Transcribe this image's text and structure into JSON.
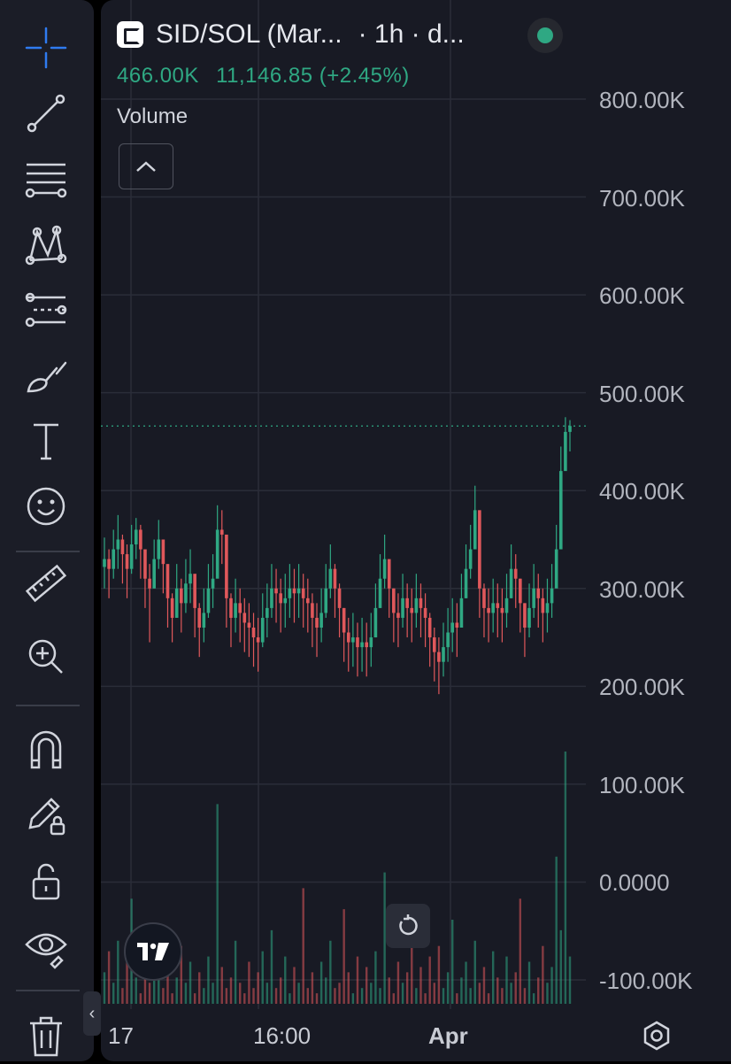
{
  "toolbar": {
    "tools": [
      {
        "name": "crosshair-tool",
        "icon": "crosshair-icon"
      },
      {
        "name": "trend-line-tool",
        "icon": "trend-line-icon"
      },
      {
        "name": "fib-retracement-tool",
        "icon": "fib-retracement-icon"
      },
      {
        "name": "xabcd-pattern-tool",
        "icon": "pattern-icon"
      },
      {
        "name": "prediction-tool",
        "icon": "forecast-icon"
      },
      {
        "name": "brush-tool",
        "icon": "brush-icon"
      },
      {
        "name": "text-tool",
        "icon": "text-icon"
      },
      {
        "name": "emoji-tool",
        "icon": "smiley-icon"
      },
      {
        "name": "ruler-tool",
        "icon": "ruler-icon"
      },
      {
        "name": "zoom-in-tool",
        "icon": "zoom-in-icon"
      },
      {
        "name": "magnet-tool",
        "icon": "magnet-icon"
      },
      {
        "name": "lock-drawings-tool",
        "icon": "pencil-lock-icon"
      },
      {
        "name": "unlock-tool",
        "icon": "unlock-icon"
      },
      {
        "name": "hide-drawings-tool",
        "icon": "eye-icon"
      },
      {
        "name": "delete-tool",
        "icon": "trash-icon"
      }
    ],
    "collapse_glyph": "‹"
  },
  "legend": {
    "symbol": "SID/SOL (Mar...",
    "interval": "· 1h · d...",
    "open_value": "466.00K",
    "volume_value": "11,146.85 (+2.45%)",
    "indicator_label": "Volume"
  },
  "price_axis": {
    "labels": [
      "800.00K",
      "700.00K",
      "600.00K",
      "500.00K",
      "400.00K",
      "300.00K",
      "200.00K",
      "100.00K",
      "0.0000",
      "-100.00K"
    ]
  },
  "time_axis": {
    "labels": [
      "17",
      "16:00",
      "Apr"
    ]
  },
  "colors": {
    "up": "#2fa883",
    "down": "#e0585b",
    "background": "#181a24",
    "grid": "#2a2d38",
    "price_line": "#2fa883"
  },
  "chart_data": {
    "type": "candlestick",
    "series": [
      {
        "name": "SID/SOL",
        "close": [
          330000,
          320000,
          340000,
          350000,
          335000,
          320000,
          345000,
          360000,
          340000,
          310000,
          300000,
          330000,
          350000,
          325000,
          290000,
          270000,
          300000,
          285000,
          305000,
          315000,
          280000,
          260000,
          275000,
          300000,
          310000,
          360000,
          355000,
          290000,
          270000,
          285000,
          275000,
          265000,
          260000,
          250000,
          245000,
          270000,
          280000,
          300000,
          295000,
          285000,
          290000,
          300000,
          295000,
          300000,
          290000,
          285000,
          270000,
          260000,
          275000,
          300000,
          320000,
          300000,
          280000,
          255000,
          245000,
          250000,
          240000,
          245000,
          240000,
          250000,
          280000,
          310000,
          330000,
          300000,
          275000,
          270000,
          290000,
          280000,
          275000,
          290000,
          280000,
          270000,
          250000,
          235000,
          225000,
          240000,
          255000,
          265000,
          260000,
          290000,
          320000,
          340000,
          380000,
          300000,
          280000,
          275000,
          285000,
          280000,
          275000,
          290000,
          320000,
          310000,
          285000,
          260000,
          280000,
          300000,
          290000,
          275000,
          285000,
          300000,
          340000,
          420000,
          460000,
          466000
        ],
        "high": [
          352000,
          340000,
          360000,
          375000,
          355000,
          345000,
          365000,
          372000,
          365000,
          335000,
          325000,
          350000,
          370000,
          350000,
          315000,
          295000,
          325000,
          310000,
          330000,
          340000,
          305000,
          285000,
          300000,
          325000,
          335000,
          385000,
          380000,
          315000,
          295000,
          310000,
          300000,
          290000,
          285000,
          275000,
          270000,
          295000,
          305000,
          325000,
          320000,
          310000,
          315000,
          325000,
          320000,
          325000,
          315000,
          310000,
          295000,
          285000,
          300000,
          325000,
          345000,
          325000,
          305000,
          280000,
          270000,
          275000,
          265000,
          270000,
          265000,
          275000,
          305000,
          335000,
          355000,
          325000,
          300000,
          295000,
          315000,
          305000,
          300000,
          315000,
          305000,
          295000,
          275000,
          260000,
          250000,
          265000,
          280000,
          290000,
          285000,
          315000,
          345000,
          365000,
          405000,
          325000,
          305000,
          300000,
          310000,
          305000,
          300000,
          315000,
          345000,
          335000,
          310000,
          285000,
          305000,
          325000,
          315000,
          300000,
          310000,
          325000,
          365000,
          445000,
          475000,
          472000
        ],
        "low": [
          300000,
          290000,
          310000,
          320000,
          305000,
          290000,
          315000,
          330000,
          310000,
          280000,
          245000,
          300000,
          320000,
          295000,
          260000,
          245000,
          270000,
          255000,
          275000,
          285000,
          250000,
          230000,
          245000,
          270000,
          280000,
          330000,
          325000,
          260000,
          240000,
          255000,
          245000,
          235000,
          230000,
          220000,
          215000,
          240000,
          250000,
          270000,
          265000,
          255000,
          260000,
          270000,
          265000,
          270000,
          260000,
          255000,
          240000,
          230000,
          245000,
          270000,
          290000,
          270000,
          250000,
          225000,
          215000,
          220000,
          210000,
          215000,
          210000,
          220000,
          250000,
          280000,
          300000,
          270000,
          245000,
          240000,
          260000,
          250000,
          245000,
          260000,
          250000,
          240000,
          220000,
          205000,
          192000,
          210000,
          225000,
          235000,
          230000,
          260000,
          290000,
          310000,
          350000,
          270000,
          250000,
          245000,
          255000,
          250000,
          245000,
          260000,
          290000,
          280000,
          255000,
          230000,
          250000,
          270000,
          260000,
          245000,
          255000,
          270000,
          310000,
          390000,
          430000,
          440000
        ]
      },
      {
        "name": "Volume",
        "values": [
          6,
          10,
          4,
          12,
          3,
          8,
          20,
          5,
          2,
          9,
          4,
          6,
          15,
          3,
          7,
          2,
          5,
          11,
          4,
          8,
          2,
          6,
          3,
          9,
          4,
          38,
          7,
          3,
          5,
          12,
          4,
          2,
          8,
          3,
          6,
          10,
          4,
          14,
          3,
          5,
          9,
          2,
          7,
          4,
          22,
          3,
          6,
          2,
          8,
          5,
          12,
          3,
          4,
          18,
          6,
          2,
          9,
          3,
          7,
          4,
          10,
          3,
          25,
          5,
          2,
          8,
          4,
          6,
          14,
          3,
          7,
          2,
          9,
          4,
          11,
          3,
          6,
          16,
          2,
          5,
          8,
          3,
          12,
          4,
          7,
          2,
          10,
          5,
          3,
          9,
          4,
          6,
          20,
          3,
          8,
          2,
          5,
          11,
          4,
          7,
          28,
          14,
          48,
          9
        ]
      }
    ],
    "ylim": [
      -100000,
      800000
    ]
  }
}
